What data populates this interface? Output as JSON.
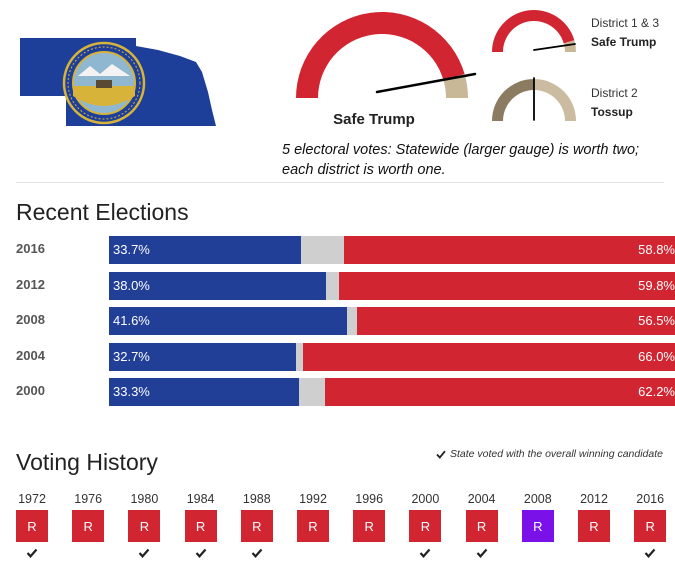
{
  "state": {
    "flag_icon": "nebraska-flag-icon",
    "colors": {
      "flag_blue": "#1d3f9a",
      "seal_gold": "#d7b33a"
    }
  },
  "gauges": {
    "statewide": {
      "rating": "Safe Trump",
      "needle_pct": 0.92
    },
    "district_1_3": {
      "name": "District 1 & 3",
      "rating": "Safe Trump",
      "needle_pct": 0.92
    },
    "district_2": {
      "name": "District 2",
      "rating": "Tossup",
      "needle_pct": 0.5
    },
    "colors": {
      "safe_rep": "#d22532",
      "likely": "#c9b898",
      "tossup_left": "#8b7b60",
      "tossup_right": "#cbbba0"
    }
  },
  "ev_note": "5 electoral votes: Statewide (larger gauge) is worth two; each district is worth one.",
  "recent_elections": {
    "title": "Recent Elections",
    "rows": [
      {
        "year": "2016",
        "dem_pct": 33.7,
        "rep_pct": 58.8,
        "dem_label": "33.7%",
        "rep_label": "58.8%"
      },
      {
        "year": "2012",
        "dem_pct": 38.0,
        "rep_pct": 59.8,
        "dem_label": "38.0%",
        "rep_label": "59.8%"
      },
      {
        "year": "2008",
        "dem_pct": 41.6,
        "rep_pct": 56.5,
        "dem_label": "41.6%",
        "rep_label": "56.5%"
      },
      {
        "year": "2004",
        "dem_pct": 32.7,
        "rep_pct": 66.0,
        "dem_label": "32.7%",
        "rep_label": "66.0%"
      },
      {
        "year": "2000",
        "dem_pct": 33.3,
        "rep_pct": 62.2,
        "dem_label": "33.3%",
        "rep_label": "62.2%"
      }
    ],
    "colors": {
      "dem": "#213f96",
      "other": "#cfcfcf",
      "rep": "#d22532"
    }
  },
  "voting_history": {
    "title": "Voting History",
    "legend": "State voted with the overall winning candidate",
    "items": [
      {
        "year": "1972",
        "party": "R",
        "color": "#d22532",
        "winner": true
      },
      {
        "year": "1976",
        "party": "R",
        "color": "#d22532",
        "winner": false
      },
      {
        "year": "1980",
        "party": "R",
        "color": "#d22532",
        "winner": true
      },
      {
        "year": "1984",
        "party": "R",
        "color": "#d22532",
        "winner": true
      },
      {
        "year": "1988",
        "party": "R",
        "color": "#d22532",
        "winner": true
      },
      {
        "year": "1992",
        "party": "R",
        "color": "#d22532",
        "winner": false
      },
      {
        "year": "1996",
        "party": "R",
        "color": "#d22532",
        "winner": false
      },
      {
        "year": "2000",
        "party": "R",
        "color": "#d22532",
        "winner": true
      },
      {
        "year": "2004",
        "party": "R",
        "color": "#d22532",
        "winner": true
      },
      {
        "year": "2008",
        "party": "R",
        "color": "#7a11e8",
        "winner": false
      },
      {
        "year": "2012",
        "party": "R",
        "color": "#d22532",
        "winner": false
      },
      {
        "year": "2016",
        "party": "R",
        "color": "#d22532",
        "winner": true
      }
    ]
  }
}
